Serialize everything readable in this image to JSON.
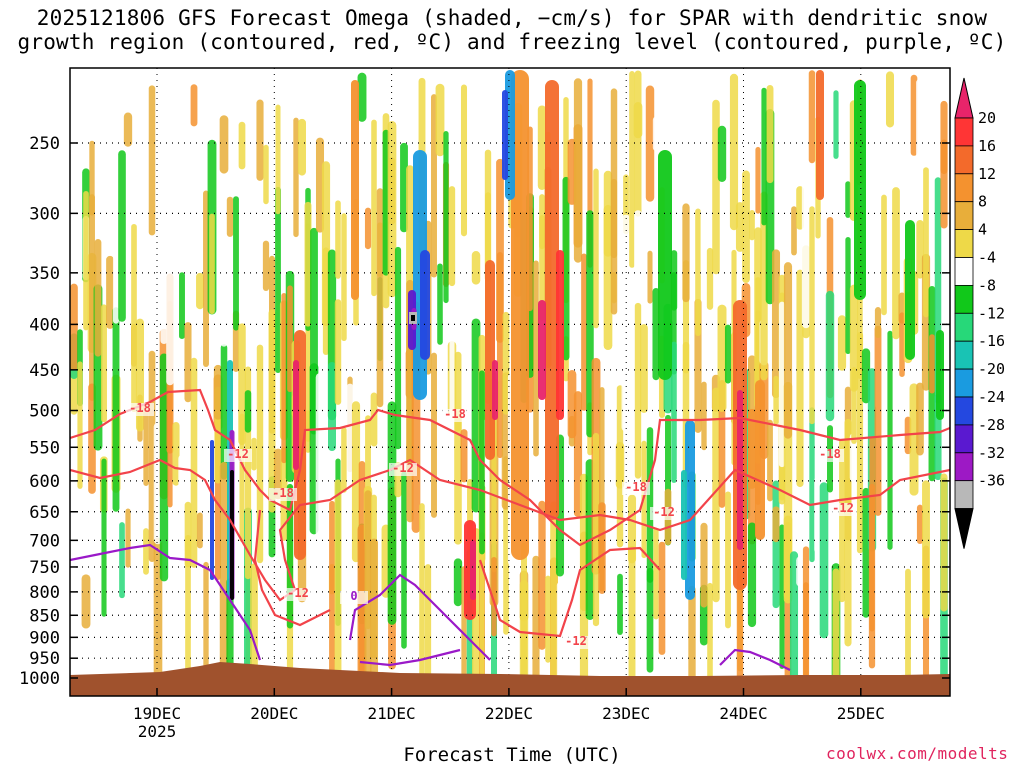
{
  "title_line1": "2025121806 GFS Forecast Omega (shaded, −cm/s) for SPAR with dendritic snow",
  "title_line2": "growth region (contoured, red, ºC) and freezing level (contoured, purple, ºC)",
  "xlabel": "Forecast Time (UTC)",
  "credit": "coolwx.com/modelts",
  "chart_data": {
    "type": "heatmap",
    "title": "2025121806 GFS Forecast Omega (shaded, −cm/s) for SPAR with dendritic snow growth region (contoured, red, ºC) and freezing level (contoured, purple, ºC)",
    "xlabel": "Forecast Time (UTC)",
    "ylabel": "",
    "y_ticks": [
      250,
      300,
      350,
      400,
      450,
      500,
      550,
      600,
      650,
      700,
      750,
      800,
      850,
      900,
      950,
      1000
    ],
    "x_ticks": [
      "19DEC",
      "20DEC",
      "21DEC",
      "22DEC",
      "23DEC",
      "24DEC",
      "25DEC"
    ],
    "x_year_label": "2025",
    "colorbar": {
      "ticks": [
        20,
        16,
        12,
        8,
        4,
        -4,
        -8,
        -12,
        -16,
        -20,
        -24,
        -28,
        -32,
        -36
      ],
      "colors": [
        "#e8246a",
        "#ff3535",
        "#f36a2b",
        "#f4922f",
        "#e8ae3a",
        "#eed948",
        "#ffffff",
        "#11c81a",
        "#27d879",
        "#19c3b4",
        "#1a9be0",
        "#2448e0",
        "#5a19d0",
        "#9d19c5",
        "#b8b8b8",
        "#000000"
      ]
    },
    "contour_labels": {
      "dgz": [
        "-18",
        "-12"
      ],
      "freezing": [
        "0"
      ]
    },
    "y_scale": "log-pressure",
    "y_range": [
      200,
      1030
    ],
    "grid": true
  }
}
